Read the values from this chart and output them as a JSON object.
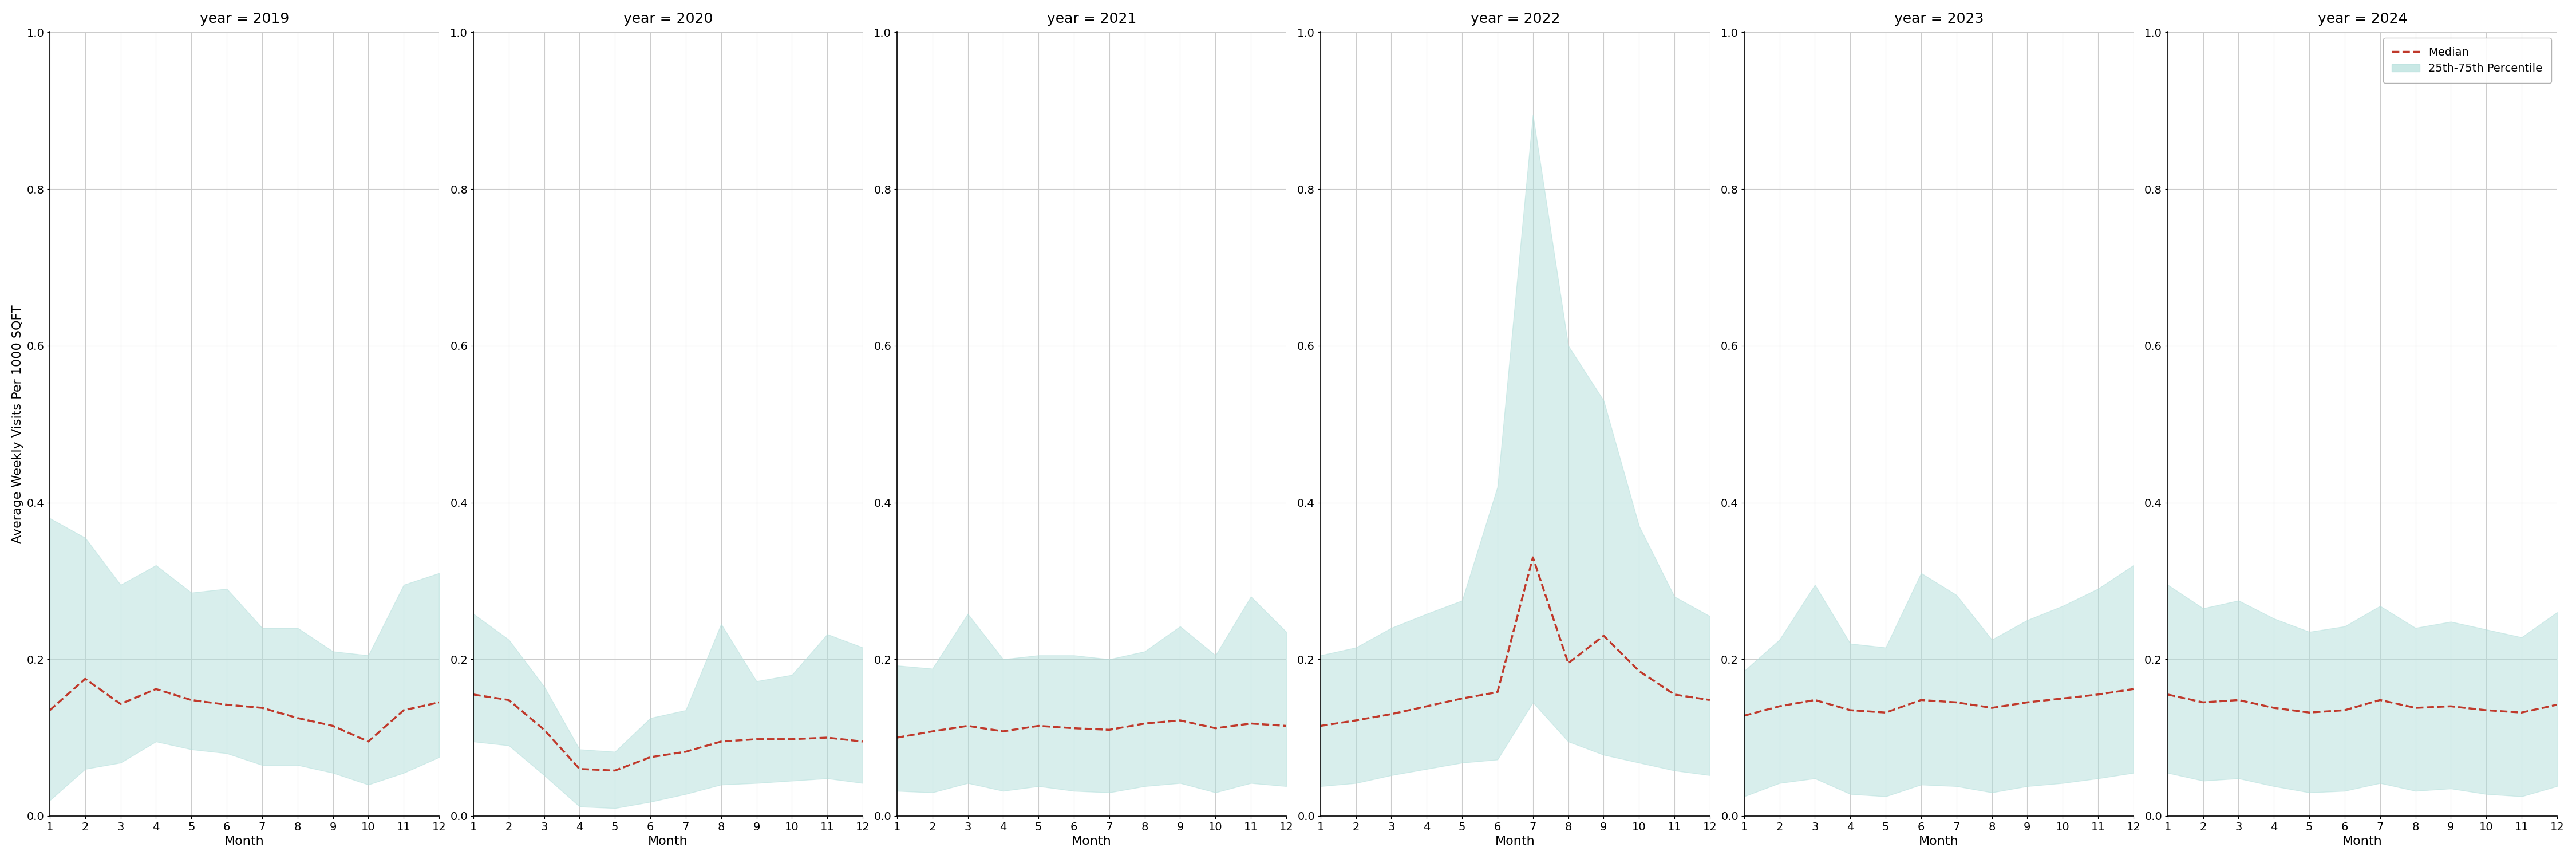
{
  "years": [
    2019,
    2020,
    2021,
    2022,
    2023,
    2024
  ],
  "months": [
    1,
    2,
    3,
    4,
    5,
    6,
    7,
    8,
    9,
    10,
    11,
    12
  ],
  "median": {
    "2019": [
      0.135,
      0.175,
      0.143,
      0.162,
      0.148,
      0.142,
      0.138,
      0.125,
      0.115,
      0.095,
      0.135,
      0.145
    ],
    "2020": [
      0.155,
      0.148,
      0.11,
      0.06,
      0.058,
      0.075,
      0.082,
      0.095,
      0.098,
      0.098,
      0.1,
      0.095
    ],
    "2021": [
      0.1,
      0.108,
      0.115,
      0.108,
      0.115,
      0.112,
      0.11,
      0.118,
      0.122,
      0.112,
      0.118,
      0.115
    ],
    "2022": [
      0.115,
      0.122,
      0.13,
      0.14,
      0.15,
      0.158,
      0.33,
      0.195,
      0.23,
      0.185,
      0.155,
      0.148
    ],
    "2023": [
      0.128,
      0.14,
      0.148,
      0.135,
      0.132,
      0.148,
      0.145,
      0.138,
      0.145,
      0.15,
      0.155,
      0.162
    ],
    "2024": [
      0.155,
      0.145,
      0.148,
      0.138,
      0.132,
      0.135,
      0.148,
      0.138,
      0.14,
      0.135,
      0.132,
      0.142
    ]
  },
  "p25": {
    "2019": [
      0.02,
      0.06,
      0.068,
      0.095,
      0.085,
      0.08,
      0.065,
      0.065,
      0.055,
      0.04,
      0.055,
      0.075
    ],
    "2020": [
      0.095,
      0.09,
      0.052,
      0.012,
      0.01,
      0.018,
      0.028,
      0.04,
      0.042,
      0.045,
      0.048,
      0.042
    ],
    "2021": [
      0.032,
      0.03,
      0.042,
      0.032,
      0.038,
      0.032,
      0.03,
      0.038,
      0.042,
      0.03,
      0.042,
      0.038
    ],
    "2022": [
      0.038,
      0.042,
      0.052,
      0.06,
      0.068,
      0.072,
      0.145,
      0.095,
      0.078,
      0.068,
      0.058,
      0.052
    ],
    "2023": [
      0.025,
      0.042,
      0.048,
      0.028,
      0.025,
      0.04,
      0.038,
      0.03,
      0.038,
      0.042,
      0.048,
      0.055
    ],
    "2024": [
      0.055,
      0.045,
      0.048,
      0.038,
      0.03,
      0.032,
      0.042,
      0.032,
      0.035,
      0.028,
      0.025,
      0.038
    ]
  },
  "p75": {
    "2019": [
      0.38,
      0.355,
      0.295,
      0.32,
      0.285,
      0.29,
      0.24,
      0.24,
      0.21,
      0.205,
      0.295,
      0.31
    ],
    "2020": [
      0.258,
      0.225,
      0.165,
      0.085,
      0.082,
      0.125,
      0.135,
      0.245,
      0.172,
      0.18,
      0.232,
      0.215
    ],
    "2021": [
      0.192,
      0.188,
      0.258,
      0.2,
      0.205,
      0.205,
      0.2,
      0.21,
      0.242,
      0.205,
      0.28,
      0.235
    ],
    "2022": [
      0.205,
      0.215,
      0.24,
      0.258,
      0.275,
      0.42,
      0.895,
      0.6,
      0.53,
      0.37,
      0.28,
      0.255
    ],
    "2023": [
      0.185,
      0.225,
      0.295,
      0.22,
      0.215,
      0.31,
      0.282,
      0.225,
      0.25,
      0.268,
      0.29,
      0.32
    ],
    "2024": [
      0.295,
      0.265,
      0.275,
      0.252,
      0.235,
      0.242,
      0.268,
      0.24,
      0.248,
      0.238,
      0.228,
      0.26
    ]
  },
  "ylim": [
    0.0,
    1.0
  ],
  "yticks": [
    0.0,
    0.2,
    0.4,
    0.6,
    0.8,
    1.0
  ],
  "xlabel": "Month",
  "ylabel": "Average Weekly Visits Per 1000 SQFT",
  "fill_color": "#b2dfdb",
  "fill_alpha": 0.5,
  "line_color": "#c0392b",
  "line_style": "--",
  "line_width": 2.5,
  "grid_color": "#cccccc",
  "background_color": "#ffffff",
  "legend_labels": [
    "Median",
    "25th-75th Percentile"
  ],
  "title_fontsize": 18,
  "label_fontsize": 16,
  "tick_fontsize": 14
}
